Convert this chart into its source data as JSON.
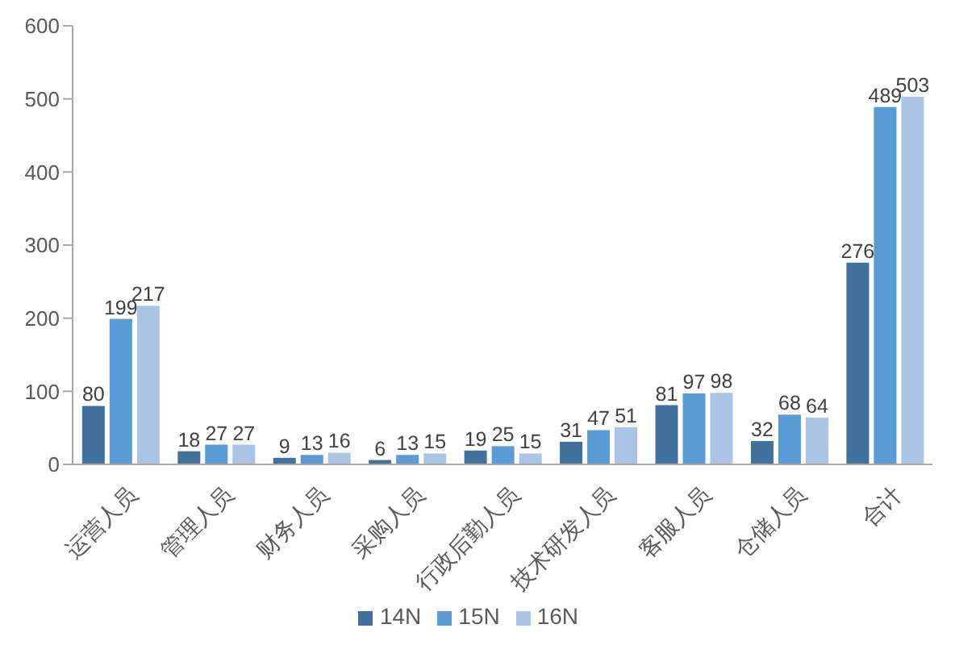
{
  "chart_data": {
    "type": "bar",
    "categories": [
      "运营人员",
      "管理人员",
      "财务人员",
      "采购人员",
      "行政后勤人员",
      "技术研发人员",
      "客服人员",
      "仓储人员",
      "合计"
    ],
    "series": [
      {
        "name": "14N",
        "color": "#41719c",
        "values": [
          80,
          18,
          9,
          6,
          19,
          31,
          81,
          32,
          276
        ]
      },
      {
        "name": "15N",
        "color": "#5b9bd5",
        "values": [
          199,
          27,
          13,
          13,
          25,
          47,
          97,
          68,
          489
        ]
      },
      {
        "name": "16N",
        "color": "#a9c4e4",
        "values": [
          217,
          27,
          16,
          15,
          15,
          51,
          98,
          64,
          503
        ]
      }
    ],
    "ylim": [
      0,
      600
    ],
    "yticks": [
      0,
      100,
      200,
      300,
      400,
      500,
      600
    ],
    "data_labels": true,
    "legend": "bottom"
  }
}
